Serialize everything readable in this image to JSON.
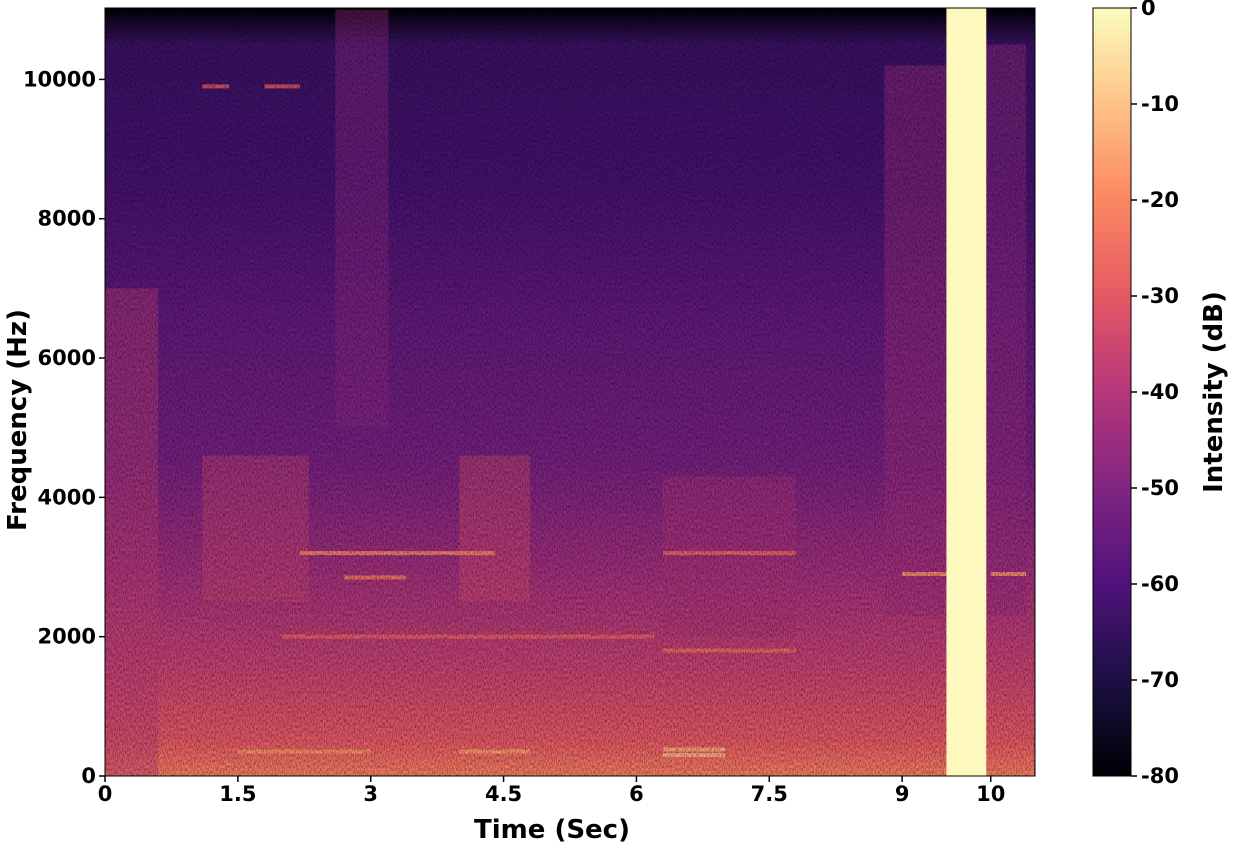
{
  "chart_data": {
    "type": "heatmap",
    "subtype": "spectrogram",
    "title": "",
    "xlabel": "Time (Sec)",
    "ylabel": "Frequency (Hz)",
    "xlim": [
      0,
      10.5
    ],
    "ylim": [
      0,
      11025
    ],
    "x_ticks": [
      0,
      1.5,
      3,
      4.5,
      6,
      7.5,
      9,
      10
    ],
    "x_tick_labels": [
      "0",
      "1.5",
      "3",
      "4.5",
      "6",
      "7.5",
      "9",
      "10"
    ],
    "y_ticks": [
      0,
      2000,
      4000,
      6000,
      8000,
      10000
    ],
    "y_tick_labels": [
      "0",
      "2000",
      "4000",
      "6000",
      "8000",
      "10000"
    ],
    "colormap": "magma",
    "colorbar": {
      "label": "Intensity (dB)",
      "range": [
        -80,
        0
      ],
      "ticks": [
        0,
        -10,
        -20,
        -30,
        -40,
        -50,
        -60,
        -70,
        -80
      ],
      "tick_labels": [
        "0",
        "-10",
        "-20",
        "-30",
        "-40",
        "-50",
        "-60",
        "-70",
        "-80"
      ],
      "placement": "right"
    },
    "background_db": {
      "time_blocks": [
        0,
        0.5,
        1.0,
        1.5,
        2.0,
        2.5,
        3.0,
        3.5,
        4.0,
        4.5,
        5.0,
        5.5,
        6.0,
        6.5,
        7.0,
        7.5,
        8.0,
        8.5,
        9.0,
        9.5,
        10.0,
        10.5
      ],
      "freq_levels": [
        {
          "freq": 0,
          "db": -22
        },
        {
          "freq": 500,
          "db": -30
        },
        {
          "freq": 1500,
          "db": -36
        },
        {
          "freq": 3000,
          "db": -44
        },
        {
          "freq": 4500,
          "db": -52
        },
        {
          "freq": 6500,
          "db": -56
        },
        {
          "freq": 8500,
          "db": -62
        },
        {
          "freq": 10500,
          "db": -64
        },
        {
          "freq": 11025,
          "db": -80
        }
      ]
    },
    "event_regions": [
      {
        "t0": 0.0,
        "t1": 0.6,
        "f0": 0,
        "f1": 7000,
        "db": -38
      },
      {
        "t0": 1.1,
        "t1": 2.3,
        "f0": 2500,
        "f1": 4600,
        "db": -36
      },
      {
        "t0": 2.6,
        "t1": 3.2,
        "f0": 5000,
        "f1": 11000,
        "db": -48
      },
      {
        "t0": 4.0,
        "t1": 4.8,
        "f0": 2500,
        "f1": 4600,
        "db": -34
      },
      {
        "t0": 6.3,
        "t1": 7.8,
        "f0": 2000,
        "f1": 4300,
        "db": -42
      },
      {
        "t0": 8.8,
        "t1": 9.7,
        "f0": 2300,
        "f1": 10200,
        "db": -44
      },
      {
        "t0": 9.95,
        "t1": 10.4,
        "f0": 2300,
        "f1": 10500,
        "db": -46
      }
    ],
    "harmonic_lines": [
      {
        "t0": 2.2,
        "t1": 4.4,
        "freq": 3200,
        "db": -20
      },
      {
        "t0": 2.7,
        "t1": 3.4,
        "freq": 2850,
        "db": -22
      },
      {
        "t0": 2.0,
        "t1": 6.2,
        "freq": 2000,
        "db": -28
      },
      {
        "t0": 1.5,
        "t1": 3.0,
        "freq": 350,
        "db": -18
      },
      {
        "t0": 4.0,
        "t1": 4.8,
        "freq": 350,
        "db": -16
      },
      {
        "t0": 6.3,
        "t1": 7.0,
        "freq": 300,
        "db": -12
      },
      {
        "t0": 6.3,
        "t1": 7.0,
        "freq": 380,
        "db": -14
      },
      {
        "t0": 6.3,
        "t1": 7.8,
        "freq": 1800,
        "db": -26
      },
      {
        "t0": 6.3,
        "t1": 7.8,
        "freq": 3200,
        "db": -26
      },
      {
        "t0": 9.0,
        "t1": 9.5,
        "freq": 2900,
        "db": -18
      },
      {
        "t0": 10.0,
        "t1": 10.4,
        "freq": 2900,
        "db": -18
      },
      {
        "t0": 1.1,
        "t1": 1.4,
        "freq": 9900,
        "db": -30
      },
      {
        "t0": 1.8,
        "t1": 2.2,
        "freq": 9900,
        "db": -30
      }
    ],
    "saturated_band": {
      "t0": 9.5,
      "t1": 9.95,
      "f0": 0,
      "f1": 11025,
      "db": 0
    }
  }
}
